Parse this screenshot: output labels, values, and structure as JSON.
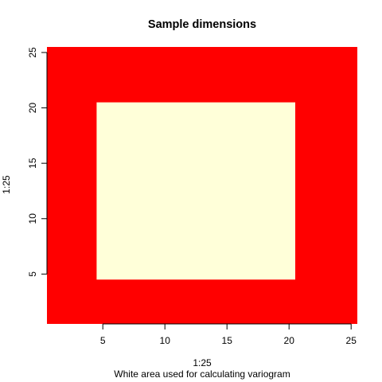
{
  "chart_data": {
    "type": "heatmap",
    "title": "Sample dimensions",
    "xlabel": "1:25",
    "ylabel": "1:25",
    "subtitle": "White area used for calculating variogram",
    "x_range": [
      1,
      25
    ],
    "y_range": [
      1,
      25
    ],
    "xlim": [
      0.5,
      25.5
    ],
    "ylim": [
      0.5,
      25.5
    ],
    "x_ticks": [
      5,
      10,
      15,
      20,
      25
    ],
    "y_ticks": [
      5,
      10,
      15,
      20,
      25
    ],
    "background_value": "outside",
    "regions": [
      {
        "name": "outside",
        "x": [
          1,
          25
        ],
        "y": [
          1,
          25
        ],
        "color": "#ff0000"
      },
      {
        "name": "inside",
        "x": [
          5,
          20
        ],
        "y": [
          5,
          20
        ],
        "color": "#ffffd9"
      }
    ],
    "grid": false,
    "legend": "none"
  }
}
